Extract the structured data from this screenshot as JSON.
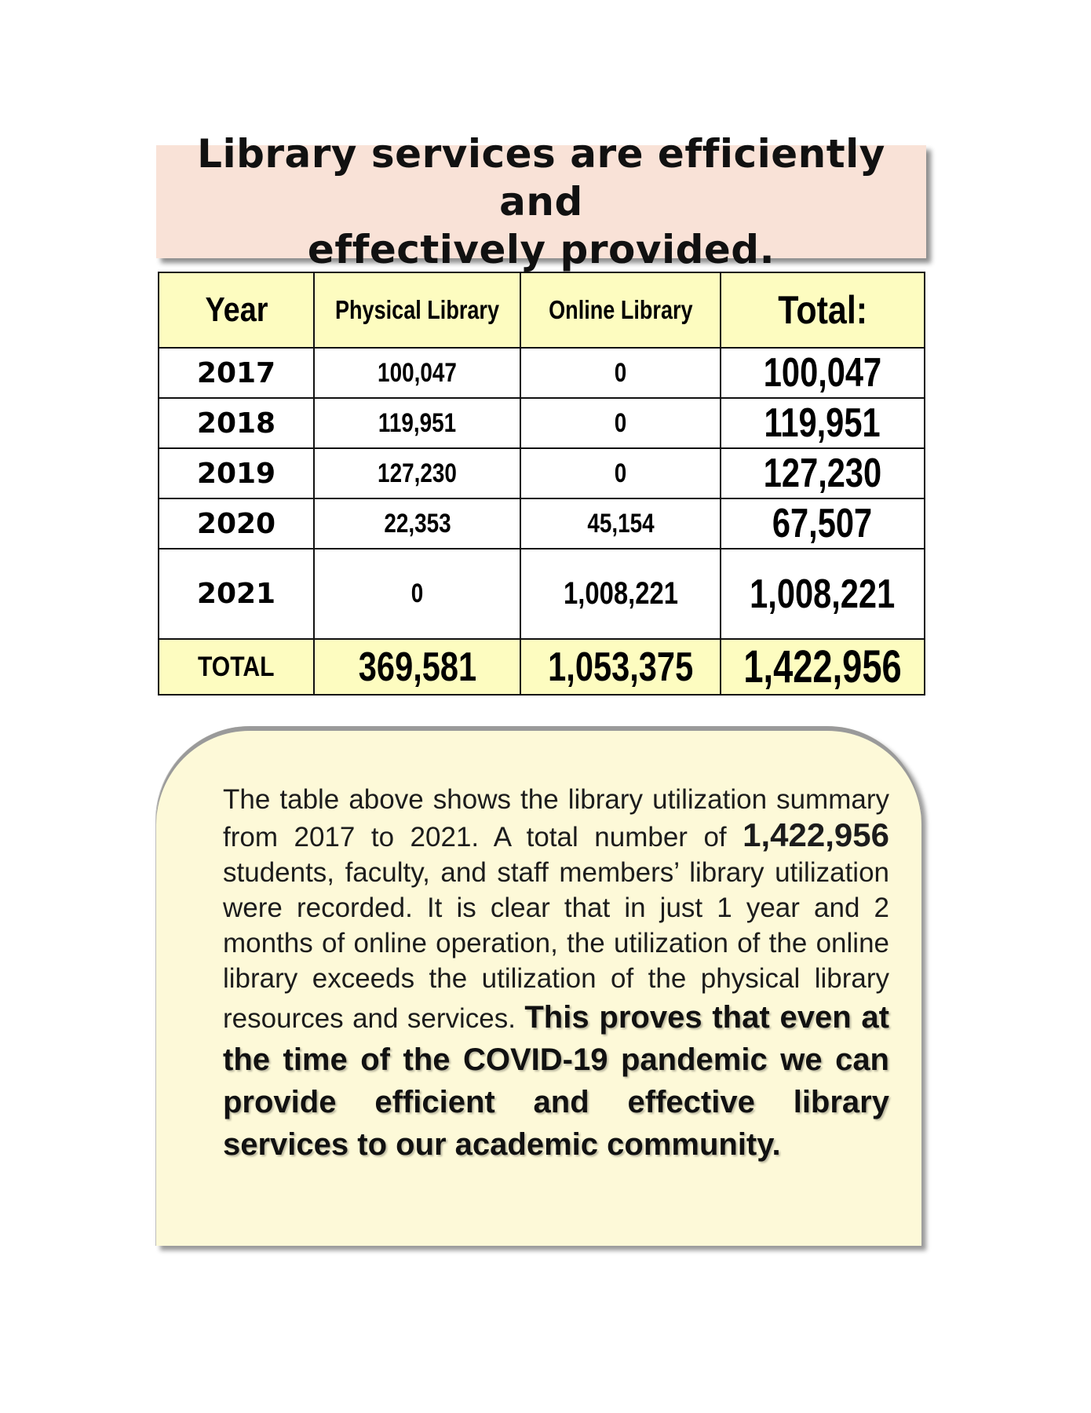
{
  "title": {
    "line1": "Library services are efficiently and",
    "line2": "effectively provided."
  },
  "table": {
    "headers": {
      "year": "Year",
      "physical": "Physical Library",
      "online": "Online Library",
      "total": "Total:"
    },
    "rows": [
      {
        "year": "2017",
        "physical": "100,047",
        "online": "0",
        "total": "100,047"
      },
      {
        "year": "2018",
        "physical": "119,951",
        "online": "0",
        "total": "119,951"
      },
      {
        "year": "2019",
        "physical": "127,230",
        "online": "0",
        "total": "127,230"
      },
      {
        "year": "2020",
        "physical": "22,353",
        "online": "45,154",
        "total": "67,507"
      },
      {
        "year": "2021",
        "physical": "0",
        "online": "1,008,221",
        "total": "1,008,221"
      }
    ],
    "footer": {
      "label": "TOTAL",
      "physical": "369,581",
      "online": "1,053,375",
      "total": "1,422,956"
    }
  },
  "paragraph": {
    "part1": "The table above shows the library utilization summary from 2017 to 2021. A total number of ",
    "highlight_number": "1,422,956",
    "part2": " students, faculty, and staff members’ library utilization were recorded. It is clear that in just 1 year and 2 months of online operation, the utilization of the online library exceeds the utilization of the physical library resources and services. ",
    "emphasis": "This proves that even at the time of the COVID-19 pandemic we can provide efficient and effective library services to our academic community."
  }
}
